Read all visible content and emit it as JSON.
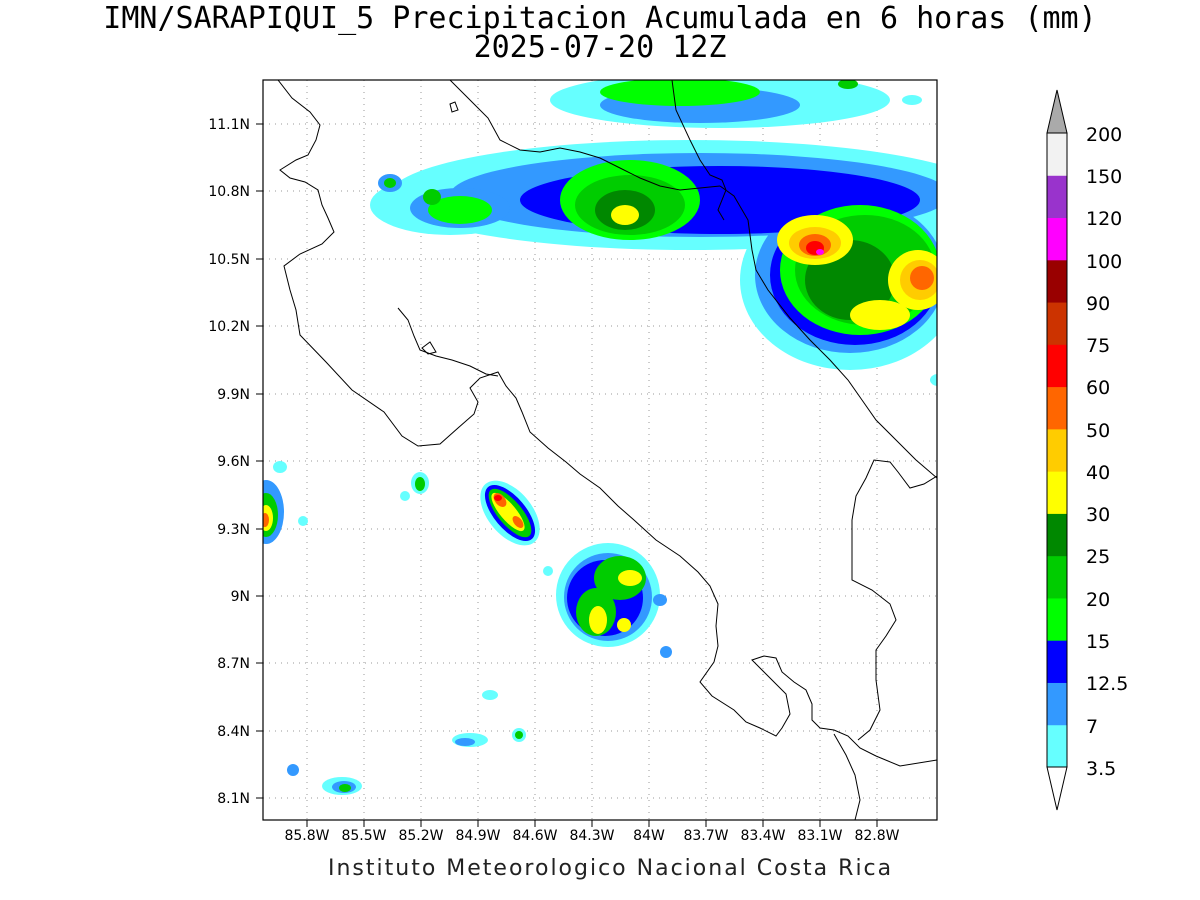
{
  "map": {
    "title": "IMN/SARAPIQUI_5 Precipitacion Acumulada en 6 horas (mm)",
    "subtitle": "2025-07-20 12Z",
    "footer": "Instituto Meteorologico Nacional Costa Rica",
    "lat_labels": [
      "11.1N",
      "10.8N",
      "10.5N",
      "10.2N",
      "9.9N",
      "9.6N",
      "9.3N",
      "9N",
      "8.7N",
      "8.4N",
      "8.1N"
    ],
    "lon_labels": [
      "85.8W",
      "85.5W",
      "85.2W",
      "84.9W",
      "84.6W",
      "84.3W",
      "84W",
      "83.7W",
      "83.4W",
      "83.1W",
      "82.8W"
    ]
  },
  "colorbar": {
    "labels": [
      "3.5",
      "7",
      "12.5",
      "15",
      "20",
      "25",
      "30",
      "40",
      "50",
      "60",
      "75",
      "90",
      "100",
      "120",
      "150",
      "200"
    ],
    "colors": [
      "#66ffff",
      "#3399ff",
      "#0000ff",
      "#00ff00",
      "#00cc00",
      "#008800",
      "#ffff00",
      "#ffcc00",
      "#ff6600",
      "#ff0000",
      "#cc3300",
      "#990000",
      "#ff00ff",
      "#9933cc",
      "#f2f2f2",
      "#aaaaaa"
    ]
  }
}
